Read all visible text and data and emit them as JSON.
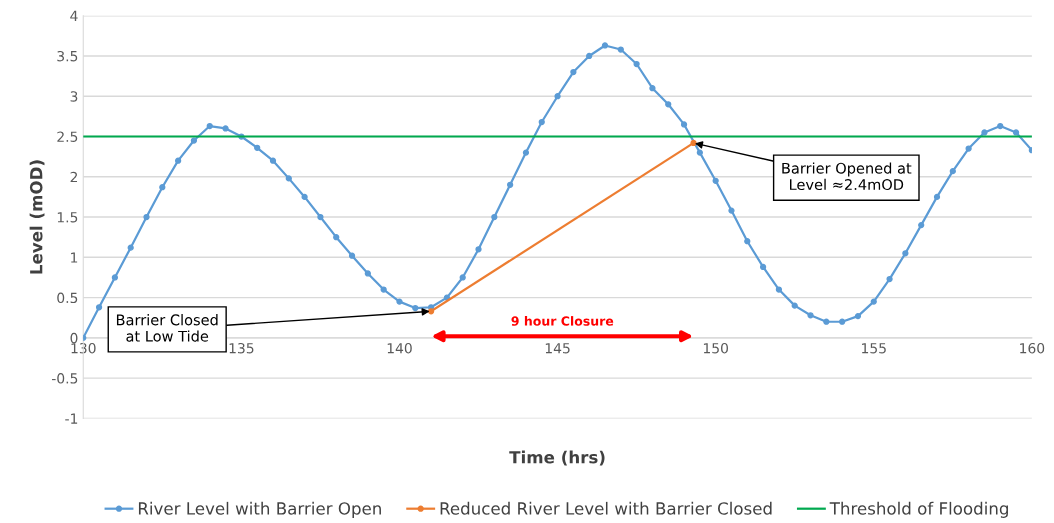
{
  "chart_data": {
    "type": "line",
    "xlabel": "Time (hrs)",
    "ylabel": "Level (mOD)",
    "xlim": [
      130,
      160
    ],
    "xticks": [
      130,
      135,
      140,
      145,
      150,
      155,
      160
    ],
    "ylim": [
      -1,
      4
    ],
    "yticks": [
      -1,
      -0.5,
      0,
      0.5,
      1,
      1.5,
      2,
      2.5,
      3,
      3.5,
      4
    ],
    "grid": "y",
    "legend": "bottom",
    "marker": "circle",
    "line_style": "solid",
    "series": [
      {
        "name": "River Level with Barrier Open",
        "color": "#5b9bd5",
        "x": [
          130,
          130.5,
          131,
          131.5,
          132,
          132.5,
          133,
          133.5,
          134,
          134.5,
          135,
          135.5,
          136,
          136.5,
          137,
          137.5,
          138,
          138.5,
          139,
          139.5,
          140,
          140.5,
          141,
          141.5,
          142,
          142.5,
          143,
          143.5,
          144,
          144.5,
          145,
          145.5,
          146,
          146.5,
          147,
          147.5,
          148,
          148.5,
          149,
          149.5,
          150,
          150.5,
          151,
          151.5,
          152,
          152.5,
          153,
          153.5,
          154,
          154.5,
          155,
          155.5,
          156,
          156.5,
          157,
          157.5,
          158,
          158.5,
          159,
          159.5,
          160
        ],
        "values": [
          0,
          0.38,
          0.75,
          1.12,
          1.5,
          1.87,
          2.2,
          2.45,
          2.63,
          2.6,
          2.5,
          2.36,
          2.2,
          1.98,
          1.75,
          1.5,
          1.25,
          1.02,
          0.8,
          0.6,
          0.45,
          0.37,
          0.38,
          0.5,
          0.75,
          1.1,
          1.5,
          1.9,
          2.3,
          2.68,
          3.0,
          3.3,
          3.5,
          3.63,
          3.58,
          3.4,
          3.1,
          2.9,
          2.65,
          2.3,
          1.95,
          1.58,
          1.2,
          0.88,
          0.6,
          0.4,
          0.28,
          0.2,
          0.2,
          0.27,
          0.45,
          0.73,
          1.05,
          1.4,
          1.75,
          2.07,
          2.35,
          2.55,
          2.63,
          2.55,
          2.33
        ]
      },
      {
        "name": "Reduced River Level with Barrier Closed",
        "color": "#ed7d31",
        "x": [
          141,
          149.3
        ],
        "values": [
          0.33,
          2.42
        ]
      },
      {
        "name": "Threshold of Flooding",
        "color": "#00a94f",
        "x": [
          130,
          160
        ],
        "values": [
          2.5,
          2.5
        ],
        "marker": "none"
      }
    ],
    "annotations": [
      {
        "text": "Barrier Closed\nat Low Tide",
        "x": 141,
        "y": 0.33
      },
      {
        "text": "Barrier Opened at\nLevel ≈2.4mOD",
        "x": 149.3,
        "y": 2.42
      },
      "9 hour Closure"
    ]
  }
}
